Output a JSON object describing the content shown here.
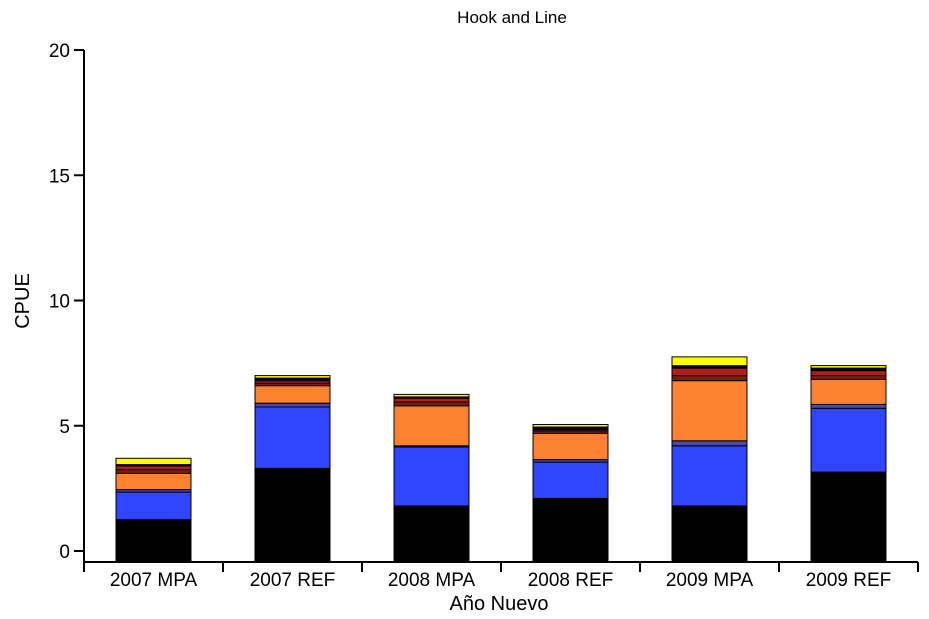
{
  "chart_data": {
    "type": "bar",
    "stacked": true,
    "title": "Hook and Line",
    "xlabel": "Año Nuevo",
    "ylabel": "CPUE",
    "ylim": [
      0,
      20
    ],
    "yticks": [
      0,
      5,
      10,
      15,
      20
    ],
    "grid": false,
    "legend": "none",
    "categories": [
      "2007 MPA",
      "2007 REF",
      "2008 MPA",
      "2008 REF",
      "2009 MPA",
      "2009 REF"
    ],
    "series": [
      {
        "color": "#000000",
        "values": [
          1.25,
          3.3,
          1.8,
          2.1,
          1.8,
          3.15
        ]
      },
      {
        "color": "#2f45ff",
        "values": [
          1.1,
          2.45,
          2.35,
          1.45,
          2.4,
          2.55
        ]
      },
      {
        "color": "#4a4aa8",
        "values": [
          0.1,
          0.15,
          0.05,
          0.1,
          0.2,
          0.15
        ]
      },
      {
        "color": "#ff8232",
        "values": [
          0.65,
          0.7,
          1.6,
          1.05,
          2.4,
          1.0
        ]
      },
      {
        "color": "#7a2000",
        "values": [
          0.15,
          0.1,
          0.15,
          0.1,
          0.2,
          0.15
        ]
      },
      {
        "color": "#b01e1e",
        "values": [
          0.15,
          0.1,
          0.15,
          0.05,
          0.3,
          0.2
        ]
      },
      {
        "color": "#000000",
        "values": [
          0.05,
          0.1,
          0.05,
          0.1,
          0.1,
          0.1
        ]
      },
      {
        "color": "#ffff00",
        "values": [
          0.25,
          0.1,
          0.1,
          0.1,
          0.35,
          0.1
        ]
      }
    ]
  }
}
